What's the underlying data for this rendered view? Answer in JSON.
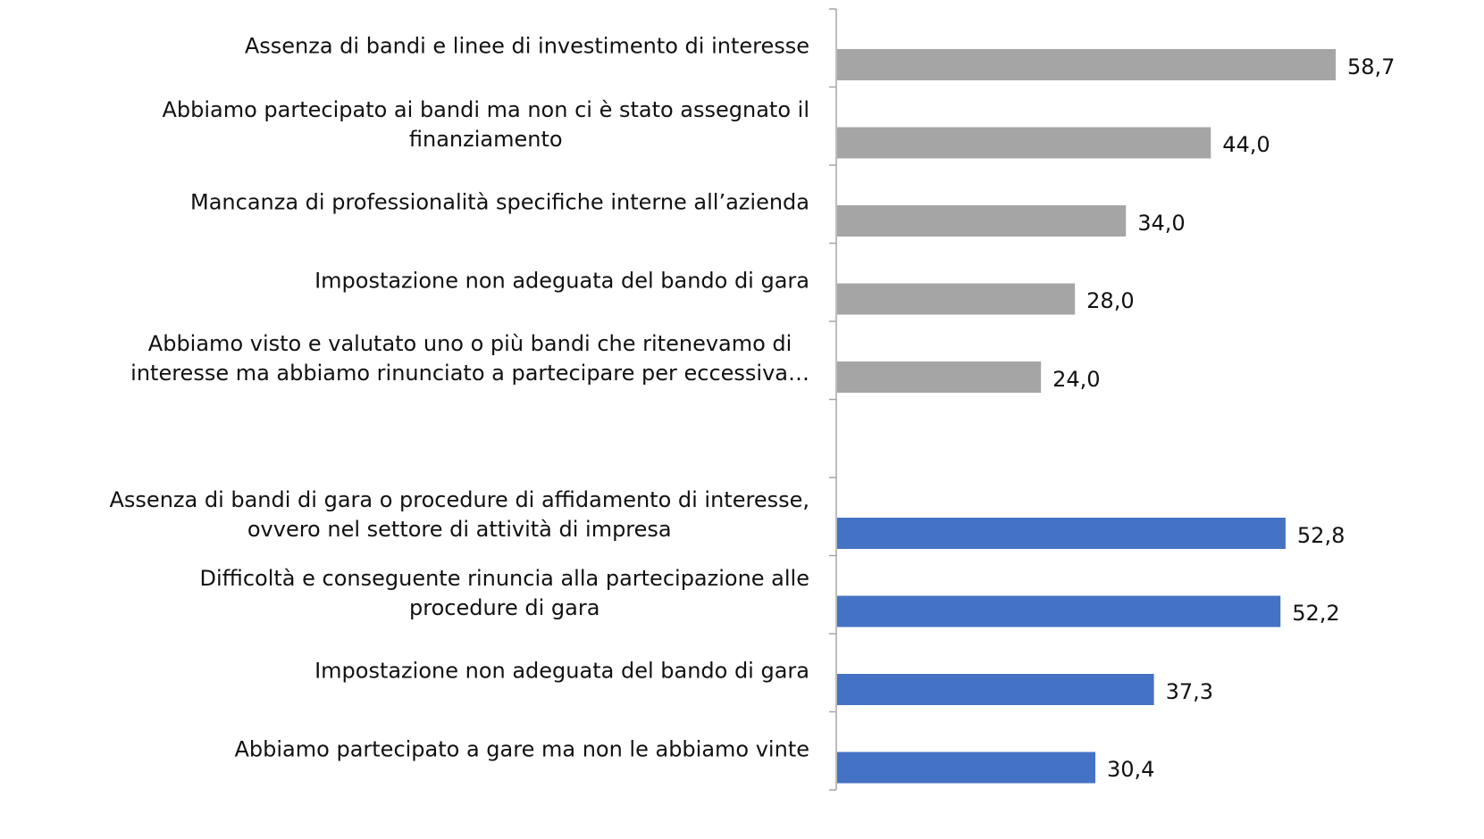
{
  "chart_data": {
    "type": "barh",
    "categories": [
      "Assenza di bandi e linee di investimento di interesse",
      "Abbiamo partecipato ai bandi ma non ci è stato assegnato il\nfinanziamento",
      "Mancanza di professionalità specifiche interne all’azienda",
      "Impostazione non adeguata del bando di gara",
      "Abbiamo visto e valutato uno o più bandi che ritenevamo di\ninteresse ma abbiamo rinunciato a partecipare per eccessiva…",
      null,
      "Assenza di bandi di gara o procedure di affidamento di interesse,\novvero nel settore di attività di impresa",
      "Difficoltà e conseguente rinuncia alla partecipazione alle\nprocedure di gara",
      "Impostazione non adeguata del bando di gara",
      "Abbiamo partecipato a gare ma non le abbiamo vinte"
    ],
    "values": [
      58.7,
      44.0,
      34.0,
      28.0,
      24.0,
      null,
      52.8,
      52.2,
      37.3,
      30.4
    ],
    "value_labels": [
      "58,7",
      "44,0",
      "34,0",
      "28,0",
      "24,0",
      null,
      "52,8",
      "52,2",
      "37,3",
      "30,4"
    ],
    "colors": [
      "#a5a5a5",
      "#a5a5a5",
      "#a5a5a5",
      "#a5a5a5",
      "#a5a5a5",
      null,
      "#4472c4",
      "#4472c4",
      "#4472c4",
      "#4472c4"
    ]
  }
}
